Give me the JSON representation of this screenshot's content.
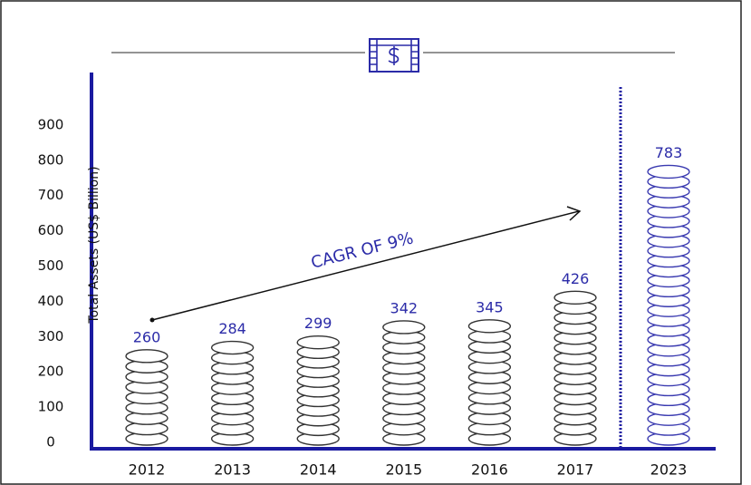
{
  "chart_data": {
    "type": "bar",
    "y_label": "Total Assets (US$ Billion)",
    "annotation": "CAGR OF 9%",
    "categories": [
      "2012",
      "2013",
      "2014",
      "2015",
      "2016",
      "2017",
      "2023"
    ],
    "values": [
      260,
      284,
      299,
      342,
      345,
      426,
      783
    ],
    "colors": [
      "#333333",
      "#333333",
      "#333333",
      "#333333",
      "#333333",
      "#333333",
      "#3a3ab0"
    ],
    "label_color": "#2b2ba8",
    "ylim": [
      0,
      1000
    ],
    "yticks": [
      0,
      100,
      200,
      300,
      400,
      500,
      600,
      700,
      800,
      900
    ]
  }
}
